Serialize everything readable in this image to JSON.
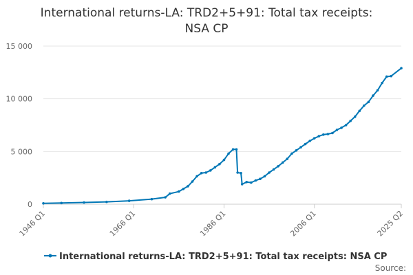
{
  "chart_data": {
    "type": "line",
    "title_lines": [
      "International returns-LA: TRD2+5+91: Total tax receipts:",
      "NSA CP"
    ],
    "x_tick_labels": [
      "1946 Q1",
      "1966 Q1",
      "1986 Q1",
      "2006 Q1",
      "2025 Q2"
    ],
    "y_tick_labels": [
      "0",
      "5 000",
      "10 000",
      "15 000"
    ],
    "ylim": [
      0,
      15000
    ],
    "xlim": [
      "1946 Q1",
      "2025 Q2"
    ],
    "grid": "horizontal",
    "legend_position": "bottom",
    "series": [
      {
        "name": "International returns-LA: TRD2+5+91: Total tax receipts: NSA CP",
        "color": "#0077b6",
        "points": [
          [
            "1946 Q1",
            80
          ],
          [
            "1950 Q1",
            110
          ],
          [
            "1955 Q1",
            160
          ],
          [
            "1960 Q1",
            220
          ],
          [
            "1965 Q1",
            320
          ],
          [
            "1970 Q1",
            480
          ],
          [
            "1973 Q1",
            650
          ],
          [
            "1974 Q1",
            1000
          ],
          [
            "1976 Q1",
            1200
          ],
          [
            "1977 Q1",
            1450
          ],
          [
            "1978 Q1",
            1700
          ],
          [
            "1979 Q1",
            2150
          ],
          [
            "1980 Q1",
            2650
          ],
          [
            "1981 Q1",
            2950
          ],
          [
            "1982 Q1",
            3000
          ],
          [
            "1983 Q1",
            3200
          ],
          [
            "1984 Q1",
            3500
          ],
          [
            "1985 Q1",
            3800
          ],
          [
            "1986 Q1",
            4200
          ],
          [
            "1987 Q1",
            4800
          ],
          [
            "1988 Q1",
            5200
          ],
          [
            "1988 Q4",
            5200
          ],
          [
            "1989 Q1",
            3000
          ],
          [
            "1989 Q4",
            2950
          ],
          [
            "1990 Q1",
            1900
          ],
          [
            "1991 Q1",
            2100
          ],
          [
            "1992 Q1",
            2050
          ],
          [
            "1993 Q1",
            2250
          ],
          [
            "1994 Q1",
            2400
          ],
          [
            "1995 Q1",
            2650
          ],
          [
            "1996 Q1",
            3000
          ],
          [
            "1997 Q1",
            3300
          ],
          [
            "1998 Q1",
            3600
          ],
          [
            "1999 Q1",
            3950
          ],
          [
            "2000 Q1",
            4300
          ],
          [
            "2001 Q1",
            4800
          ],
          [
            "2002 Q1",
            5100
          ],
          [
            "2003 Q1",
            5400
          ],
          [
            "2004 Q1",
            5700
          ],
          [
            "2005 Q1",
            6000
          ],
          [
            "2006 Q1",
            6250
          ],
          [
            "2007 Q1",
            6450
          ],
          [
            "2008 Q1",
            6600
          ],
          [
            "2009 Q1",
            6650
          ],
          [
            "2010 Q1",
            6750
          ],
          [
            "2011 Q1",
            7050
          ],
          [
            "2012 Q1",
            7250
          ],
          [
            "2013 Q1",
            7500
          ],
          [
            "2014 Q1",
            7900
          ],
          [
            "2015 Q1",
            8300
          ],
          [
            "2016 Q1",
            8850
          ],
          [
            "2017 Q1",
            9350
          ],
          [
            "2018 Q1",
            9700
          ],
          [
            "2019 Q1",
            10300
          ],
          [
            "2020 Q1",
            10800
          ],
          [
            "2021 Q1",
            11500
          ],
          [
            "2022 Q1",
            12100
          ],
          [
            "2023 Q1",
            12150
          ],
          [
            "2025 Q2",
            12900
          ]
        ]
      }
    ],
    "source_label": "Source:"
  }
}
